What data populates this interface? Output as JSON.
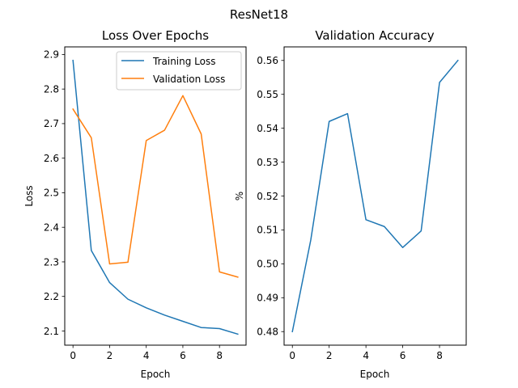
{
  "figure": {
    "title": "ResNet18",
    "background": "#ffffff"
  },
  "chart_data": [
    {
      "type": "line",
      "title": "Loss Over Epochs",
      "xlabel": "Epoch",
      "ylabel": "Loss",
      "x": [
        0,
        1,
        2,
        3,
        4,
        5,
        6,
        7,
        8,
        9
      ],
      "xlim": [
        -0.45,
        9.45
      ],
      "ylim": [
        2.059,
        2.922
      ],
      "xticks": [
        0,
        2,
        4,
        6,
        8
      ],
      "yticks": [
        2.1,
        2.2,
        2.3,
        2.4,
        2.5,
        2.6,
        2.7,
        2.8,
        2.9
      ],
      "grid": false,
      "legend": "upper right",
      "series": [
        {
          "name": "Training Loss",
          "color": "#1f77b4",
          "values": [
            2.883,
            2.333,
            2.24,
            2.192,
            2.167,
            2.146,
            2.128,
            2.11,
            2.107,
            2.091
          ]
        },
        {
          "name": "Validation Loss",
          "color": "#ff7f0e",
          "values": [
            2.742,
            2.659,
            2.294,
            2.299,
            2.651,
            2.681,
            2.781,
            2.67,
            2.271,
            2.256
          ]
        }
      ]
    },
    {
      "type": "line",
      "title": "Validation Accuracy",
      "xlabel": "Epoch",
      "ylabel": "%",
      "x": [
        0,
        1,
        2,
        3,
        4,
        5,
        6,
        7,
        8,
        9
      ],
      "xlim": [
        -0.45,
        9.45
      ],
      "ylim": [
        0.476,
        0.564
      ],
      "xticks": [
        0,
        2,
        4,
        6,
        8
      ],
      "yticks": [
        0.48,
        0.49,
        0.5,
        0.51,
        0.52,
        0.53,
        0.54,
        0.55,
        0.56
      ],
      "ytick_decimals": 2,
      "grid": false,
      "series": [
        {
          "color": "#1f77b4",
          "values": [
            0.48,
            0.507,
            0.542,
            0.5443,
            0.513,
            0.511,
            0.5048,
            0.5097,
            0.5535,
            0.56
          ]
        }
      ]
    }
  ]
}
